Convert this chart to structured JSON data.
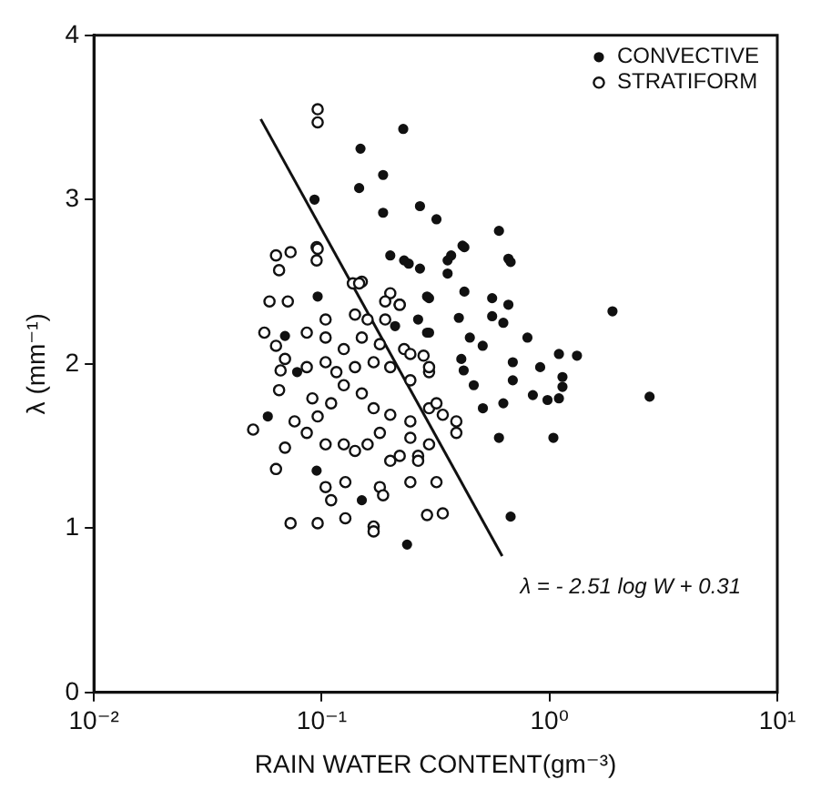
{
  "chart_data": {
    "type": "scatter",
    "xlabel": "RAIN WATER CONTENT(gm⁻³)",
    "ylabel": "λ (mm⁻¹)",
    "log": "x",
    "grid": false,
    "legend": "top right",
    "marker": "circle",
    "xlim": [
      0.01,
      10
    ],
    "xticks": [
      {
        "value": 0.01,
        "label": "10⁻²"
      },
      {
        "value": 0.1,
        "label": "10⁻¹"
      },
      {
        "value": 1,
        "label": "10⁰"
      },
      {
        "value": 10,
        "label": "10¹"
      }
    ],
    "ylim": [
      0,
      4
    ],
    "yticks": [
      0,
      1,
      2,
      3,
      4
    ],
    "annotations": [
      "λ = - 2.51 log W + 0.31"
    ],
    "series": [
      {
        "name": "CONVECTIVE",
        "color": "#111111",
        "x": [
          0.228,
          0.148,
          0.186,
          0.146,
          0.093,
          0.186,
          0.27,
          0.319,
          0.6,
          0.415,
          0.37,
          0.66,
          0.2,
          0.241,
          0.27,
          0.357,
          0.357,
          0.423,
          0.675,
          1.89,
          2.75,
          0.296,
          0.423,
          0.56,
          0.66,
          0.4,
          0.56,
          0.627,
          0.29,
          0.447,
          0.509,
          0.8,
          1.1,
          1.32,
          0.41,
          0.42,
          0.69,
          0.69,
          0.91,
          1.14,
          1.14,
          0.465,
          0.845,
          0.98,
          1.1,
          0.627,
          0.51,
          0.6,
          1.04,
          0.675,
          0.237,
          0.15,
          0.096,
          0.058,
          0.095,
          0.23,
          0.29,
          0.265,
          0.296,
          0.21,
          0.069,
          0.078
        ],
        "values": [
          3.43,
          3.31,
          3.15,
          3.07,
          3.0,
          2.92,
          2.96,
          2.88,
          2.81,
          2.72,
          2.66,
          2.64,
          2.66,
          2.61,
          2.58,
          2.63,
          2.55,
          2.71,
          2.62,
          2.32,
          1.8,
          2.4,
          2.44,
          2.4,
          2.36,
          2.28,
          2.29,
          2.25,
          2.19,
          2.16,
          2.11,
          2.16,
          2.06,
          2.05,
          2.03,
          1.96,
          2.01,
          1.9,
          1.98,
          1.92,
          1.86,
          1.87,
          1.81,
          1.78,
          1.79,
          1.76,
          1.73,
          1.55,
          1.55,
          1.07,
          0.9,
          1.17,
          2.41,
          1.68,
          1.35,
          2.63,
          2.41,
          2.27,
          2.19,
          2.23,
          2.17,
          1.95
        ]
      },
      {
        "name": "STRATIFORM",
        "color": "#111111",
        "x": [
          0.096,
          0.096,
          0.095,
          0.063,
          0.073,
          0.065,
          0.096,
          0.095,
          0.059,
          0.071,
          0.056,
          0.063,
          0.069,
          0.066,
          0.065,
          0.05,
          0.063,
          0.073,
          0.096,
          0.127,
          0.169,
          0.104,
          0.11,
          0.127,
          0.18,
          0.186,
          0.29,
          0.069,
          0.076,
          0.086,
          0.096,
          0.104,
          0.125,
          0.14,
          0.159,
          0.18,
          0.2,
          0.265,
          0.296,
          0.091,
          0.11,
          0.125,
          0.15,
          0.169,
          0.2,
          0.245,
          0.296,
          0.086,
          0.104,
          0.116,
          0.14,
          0.169,
          0.2,
          0.245,
          0.296,
          0.086,
          0.104,
          0.125,
          0.15,
          0.18,
          0.23,
          0.28,
          0.104,
          0.14,
          0.159,
          0.2,
          0.22,
          0.137,
          0.15,
          0.146,
          0.19,
          0.22,
          0.19,
          0.245,
          0.296,
          0.319,
          0.34,
          0.39,
          0.39,
          0.245,
          0.22,
          0.265,
          0.245,
          0.319,
          0.34,
          0.169
        ],
        "values": [
          3.55,
          3.47,
          2.71,
          2.66,
          2.68,
          2.57,
          2.7,
          2.63,
          2.38,
          2.38,
          2.19,
          2.11,
          2.03,
          1.96,
          1.84,
          1.6,
          1.36,
          1.03,
          1.03,
          1.06,
          1.01,
          1.25,
          1.17,
          1.28,
          1.25,
          1.2,
          1.08,
          1.49,
          1.65,
          1.58,
          1.68,
          1.51,
          1.51,
          1.47,
          1.51,
          1.58,
          1.41,
          1.44,
          1.51,
          1.79,
          1.76,
          1.87,
          1.82,
          1.73,
          1.69,
          1.65,
          1.73,
          1.98,
          2.01,
          1.95,
          1.98,
          2.01,
          1.98,
          1.9,
          1.95,
          2.19,
          2.16,
          2.09,
          2.16,
          2.12,
          2.09,
          2.05,
          2.27,
          2.3,
          2.27,
          2.43,
          2.36,
          2.49,
          2.5,
          2.49,
          2.38,
          2.36,
          2.27,
          2.06,
          1.98,
          1.76,
          1.69,
          1.65,
          1.58,
          1.55,
          1.44,
          1.41,
          1.28,
          1.28,
          1.09,
          0.98
        ]
      },
      {
        "type": "line",
        "color": "#111111",
        "marker": "none",
        "line_style": "solid",
        "x": [
          0.054,
          0.62
        ],
        "values": [
          3.49,
          0.83
        ]
      }
    ]
  }
}
